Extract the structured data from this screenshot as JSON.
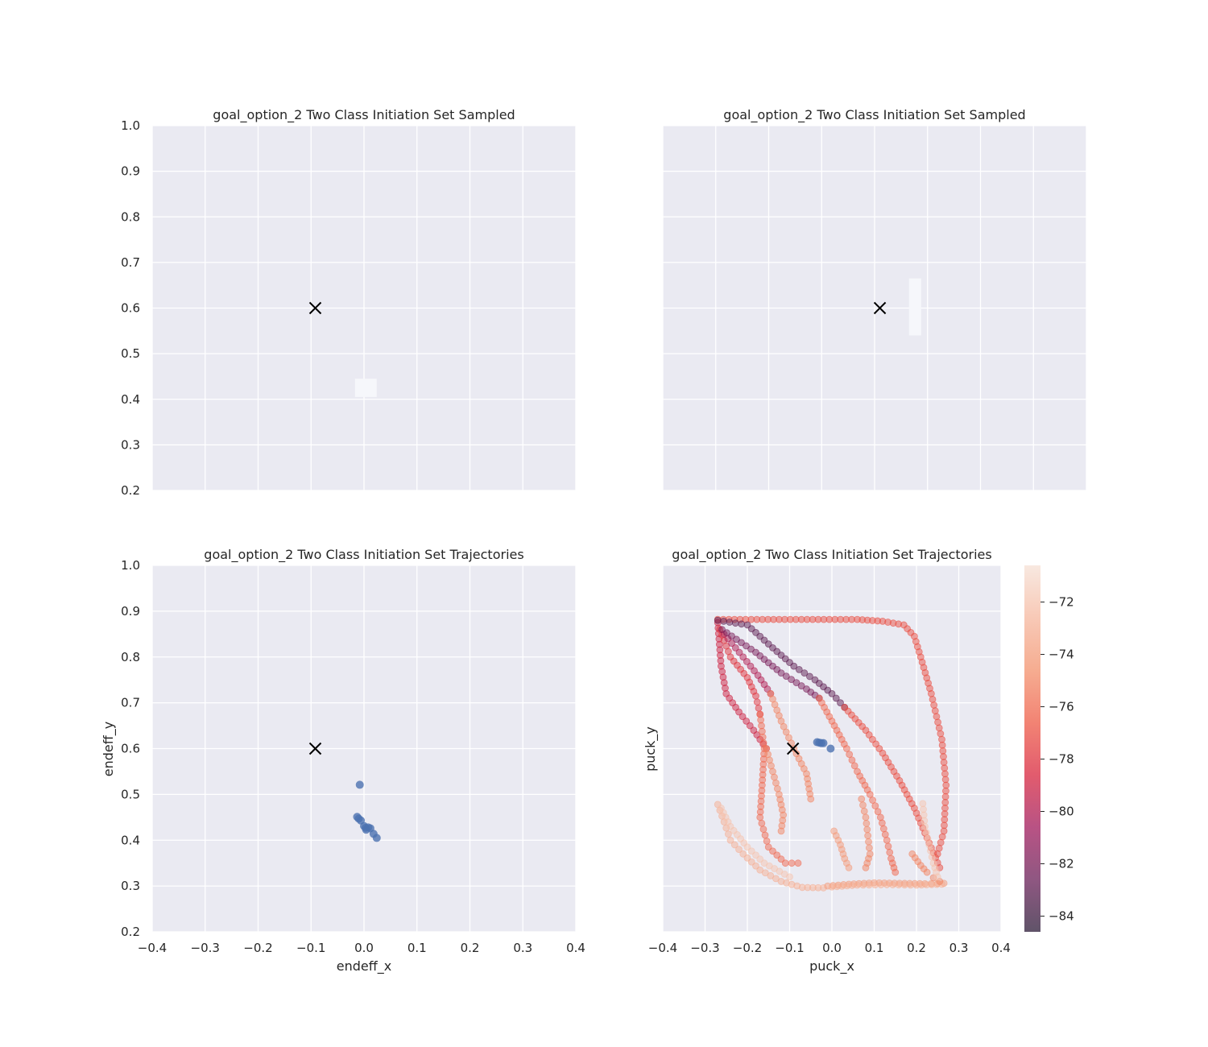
{
  "colors": {
    "panel_bg": "#eaeaf2",
    "grid": "#ffffff",
    "blue_point": "#4c72b0",
    "goal_marker": "#000000",
    "text": "#262626",
    "rocket_colormap": [
      "#2b1a37",
      "#6a1f58",
      "#a1195b",
      "#d8253d",
      "#ee5a45",
      "#f3916c",
      "#f5b79e",
      "#f6e1d6"
    ]
  },
  "chart_data": [
    {
      "type": "heatmap",
      "title": "goal_option_2 Two Class Initiation Set Sampled",
      "xlabel": "",
      "ylabel": "",
      "xlim": [
        -0.4,
        0.4
      ],
      "ylim": [
        0.2,
        1.0
      ],
      "xticks": [],
      "yticks": [
        0.2,
        0.3,
        0.4,
        0.5,
        0.6,
        0.7,
        0.8,
        0.9,
        1.0
      ],
      "grid": true,
      "goal_marker": {
        "x": -0.092,
        "y": 0.6,
        "symbol": "x"
      },
      "sampled_region": {
        "x": [
          -0.017,
          0.024
        ],
        "y": [
          0.405,
          0.445
        ]
      }
    },
    {
      "type": "heatmap",
      "title": "goal_option_2 Two Class Initiation Set Sampled",
      "xlabel": "",
      "ylabel": "",
      "xlim": [
        -0.4,
        0.4
      ],
      "ylim": [
        0.2,
        1.0
      ],
      "xticks": [],
      "yticks": [],
      "grid": true,
      "goal_marker": {
        "x": 0.01,
        "y": 0.6,
        "symbol": "x"
      },
      "sampled_region": {
        "x": [
          0.065,
          0.088
        ],
        "y": [
          0.54,
          0.665
        ]
      }
    },
    {
      "type": "scatter",
      "title": "goal_option_2 Two Class Initiation Set Trajectories",
      "xlabel": "endeff_x",
      "ylabel": "endeff_y",
      "xlim": [
        -0.4,
        0.4
      ],
      "ylim": [
        0.2,
        1.0
      ],
      "xticks": [
        -0.4,
        -0.3,
        -0.2,
        -0.1,
        0.0,
        0.1,
        0.2,
        0.3,
        0.4
      ],
      "yticks": [
        0.2,
        0.3,
        0.4,
        0.5,
        0.6,
        0.7,
        0.8,
        0.9,
        1.0
      ],
      "grid": true,
      "goal_marker": {
        "x": -0.092,
        "y": 0.6,
        "symbol": "x"
      },
      "points": [
        {
          "x": -0.008,
          "y": 0.521
        },
        {
          "x": -0.013,
          "y": 0.451
        },
        {
          "x": -0.01,
          "y": 0.447
        },
        {
          "x": -0.006,
          "y": 0.443
        },
        {
          "x": 0.0,
          "y": 0.431
        },
        {
          "x": 0.003,
          "y": 0.427
        },
        {
          "x": 0.004,
          "y": 0.423
        },
        {
          "x": 0.008,
          "y": 0.428
        },
        {
          "x": 0.012,
          "y": 0.426
        },
        {
          "x": 0.018,
          "y": 0.414
        },
        {
          "x": 0.024,
          "y": 0.405
        }
      ]
    },
    {
      "type": "scatter",
      "title": "goal_option_2 Two Class Initiation Set Trajectories",
      "xlabel": "puck_x",
      "ylabel": "puck_y",
      "xlim": [
        -0.4,
        0.4
      ],
      "ylim": [
        0.2,
        1.0
      ],
      "xticks": [
        -0.4,
        -0.3,
        -0.2,
        -0.1,
        0.0,
        0.1,
        0.2,
        0.3,
        0.4
      ],
      "yticks": [],
      "grid": true,
      "goal_marker": {
        "x": -0.092,
        "y": 0.6,
        "symbol": "x"
      },
      "colorbar": {
        "min": -84.6,
        "max": -70.6,
        "ticks": [
          -84,
          -82,
          -80,
          -78,
          -76,
          -74,
          -72
        ],
        "tick_labels": [
          "−84",
          "−82",
          "−80",
          "−78",
          "−76",
          "−74",
          "−72"
        ],
        "colormap": "rocket"
      },
      "blue_points": [
        {
          "x": -0.035,
          "y": 0.614
        },
        {
          "x": -0.03,
          "y": 0.613
        },
        {
          "x": -0.025,
          "y": 0.612
        },
        {
          "x": -0.02,
          "y": 0.612
        },
        {
          "x": -0.003,
          "y": 0.6
        }
      ],
      "trajectories": [
        {
          "c": -77,
          "pts": [
            [
              -0.27,
              0.882
            ],
            [
              0.06,
              0.882
            ],
            [
              0.12,
              0.878
            ],
            [
              0.17,
              0.87
            ],
            [
              0.195,
              0.845
            ],
            [
              0.21,
              0.8
            ],
            [
              0.235,
              0.72
            ],
            [
              0.26,
              0.62
            ],
            [
              0.27,
              0.52
            ],
            [
              0.265,
              0.42
            ],
            [
              0.25,
              0.37
            ]
          ]
        },
        {
          "c": -79,
          "pts": [
            [
              -0.27,
              0.875
            ],
            [
              -0.262,
              0.78
            ],
            [
              -0.25,
              0.72
            ],
            [
              -0.22,
              0.68
            ],
            [
              -0.185,
              0.64
            ],
            [
              -0.155,
              0.6
            ]
          ]
        },
        {
          "c": -78,
          "pts": [
            [
              -0.265,
              0.86
            ],
            [
              -0.24,
              0.8
            ],
            [
              -0.2,
              0.755
            ],
            [
              -0.18,
              0.715
            ],
            [
              -0.17,
              0.675
            ]
          ]
        },
        {
          "c": -80,
          "pts": [
            [
              -0.255,
              0.85
            ],
            [
              -0.21,
              0.8
            ],
            [
              -0.175,
              0.76
            ],
            [
              -0.145,
              0.72
            ]
          ]
        },
        {
          "c": -83,
          "pts": [
            [
              -0.27,
              0.88
            ],
            [
              -0.2,
              0.87
            ],
            [
              -0.14,
              0.82
            ],
            [
              -0.09,
              0.78
            ],
            [
              -0.04,
              0.75
            ],
            [
              0.0,
              0.72
            ],
            [
              0.03,
              0.69
            ]
          ]
        },
        {
          "c": -82,
          "pts": [
            [
              -0.26,
              0.86
            ],
            [
              -0.18,
              0.81
            ],
            [
              -0.12,
              0.765
            ],
            [
              -0.06,
              0.73
            ],
            [
              -0.03,
              0.71
            ]
          ]
        },
        {
          "c": -77,
          "pts": [
            [
              0.03,
              0.69
            ],
            [
              0.08,
              0.64
            ],
            [
              0.12,
              0.59
            ],
            [
              0.16,
              0.53
            ],
            [
              0.195,
              0.47
            ],
            [
              0.225,
              0.405
            ],
            [
              0.255,
              0.34
            ]
          ]
        },
        {
          "c": -76,
          "pts": [
            [
              -0.17,
              0.675
            ],
            [
              -0.16,
              0.6
            ],
            [
              -0.165,
              0.52
            ],
            [
              -0.17,
              0.45
            ],
            [
              -0.15,
              0.385
            ],
            [
              -0.11,
              0.35
            ],
            [
              -0.08,
              0.35
            ]
          ]
        },
        {
          "c": -75,
          "pts": [
            [
              -0.145,
              0.72
            ],
            [
              -0.12,
              0.66
            ],
            [
              -0.09,
              0.6
            ],
            [
              -0.06,
              0.545
            ],
            [
              -0.05,
              0.49
            ]
          ]
        },
        {
          "c": -75,
          "pts": [
            [
              -0.155,
              0.6
            ],
            [
              -0.14,
              0.55
            ],
            [
              -0.125,
              0.5
            ],
            [
              -0.115,
              0.455
            ],
            [
              -0.12,
              0.42
            ]
          ]
        },
        {
          "c": -76,
          "pts": [
            [
              -0.03,
              0.71
            ],
            [
              0.0,
              0.66
            ],
            [
              0.035,
              0.6
            ],
            [
              0.06,
              0.55
            ],
            [
              0.09,
              0.5
            ],
            [
              0.115,
              0.45
            ],
            [
              0.13,
              0.4
            ],
            [
              0.14,
              0.36
            ],
            [
              0.15,
              0.33
            ]
          ]
        },
        {
          "c": -75,
          "pts": [
            [
              0.07,
              0.49
            ],
            [
              0.08,
              0.45
            ],
            [
              0.085,
              0.41
            ],
            [
              0.09,
              0.37
            ],
            [
              0.08,
              0.34
            ]
          ]
        },
        {
          "c": -74,
          "pts": [
            [
              0.005,
              0.42
            ],
            [
              0.02,
              0.39
            ],
            [
              0.03,
              0.36
            ],
            [
              0.04,
              0.34
            ]
          ]
        },
        {
          "c": -73,
          "pts": [
            [
              -0.27,
              0.478
            ],
            [
              -0.255,
              0.44
            ],
            [
              -0.24,
              0.4
            ],
            [
              -0.21,
              0.37
            ],
            [
              -0.17,
              0.335
            ],
            [
              -0.12,
              0.31
            ],
            [
              -0.07,
              0.297
            ],
            [
              -0.02,
              0.296
            ]
          ]
        },
        {
          "c": -72,
          "pts": [
            [
              -0.262,
              0.47
            ],
            [
              -0.24,
              0.43
            ],
            [
              -0.2,
              0.385
            ],
            [
              -0.16,
              0.35
            ],
            [
              -0.1,
              0.32
            ]
          ]
        },
        {
          "c": -74,
          "pts": [
            [
              -0.01,
              0.3
            ],
            [
              0.04,
              0.304
            ],
            [
              0.1,
              0.307
            ],
            [
              0.16,
              0.306
            ],
            [
              0.22,
              0.305
            ],
            [
              0.265,
              0.306
            ]
          ]
        },
        {
          "c": -73,
          "pts": [
            [
              0.0,
              0.298
            ],
            [
              0.06,
              0.302
            ],
            [
              0.13,
              0.303
            ],
            [
              0.2,
              0.302
            ],
            [
              0.26,
              0.304
            ]
          ]
        },
        {
          "c": -75,
          "pts": [
            [
              0.19,
              0.37
            ],
            [
              0.21,
              0.345
            ],
            [
              0.225,
              0.33
            ],
            [
              0.24,
              0.318
            ],
            [
              0.255,
              0.31
            ]
          ]
        },
        {
          "c": -72,
          "pts": [
            [
              0.215,
              0.48
            ],
            [
              0.22,
              0.43
            ],
            [
              0.23,
              0.39
            ],
            [
              0.24,
              0.35
            ],
            [
              0.25,
              0.32
            ]
          ]
        }
      ]
    }
  ]
}
